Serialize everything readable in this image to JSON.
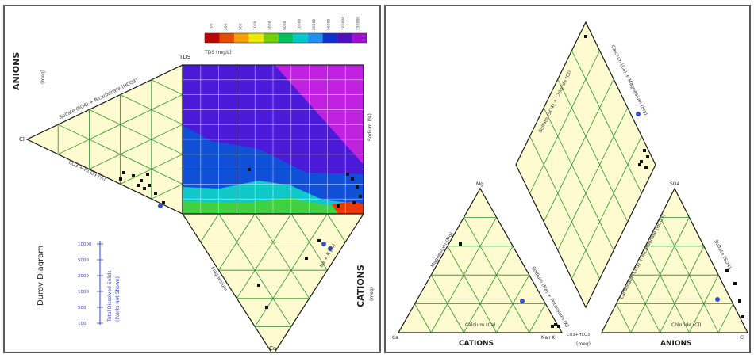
{
  "left_panel": {
    "title": "Durov Diagram",
    "anions_label": "ANIONS",
    "anions_sub": "(meq)",
    "cations_label": "CATIONS",
    "cations_sub": "(meq)",
    "anion_axis_label": "Sulfate (SO4) + Bicarbonate (HCO3)",
    "anion_axis_label_2": "CO3 + HCO3 (%)",
    "right_axis_label": "Sodium (%)",
    "bottom_axis_label_1": "Magnesium",
    "bottom_axis_label_2": "Na + K (%)",
    "colorbar_title": "TDS (mg/L)",
    "colorbar_ticks": [
      "100",
      "200",
      "500",
      "1000",
      "2000",
      "5000",
      "10000",
      "20000",
      "50000",
      "100000",
      "150000"
    ],
    "colorbar_colors": [
      "#c00000",
      "#e84a00",
      "#f5a000",
      "#e8e800",
      "#70d000",
      "#00c060",
      "#00c8c8",
      "#2090f0",
      "#1030d0",
      "#5010c0",
      "#a010d0"
    ],
    "legend_title": "Total Dissolved Solids",
    "legend_sub": "(Points Not Shown)",
    "legend_ticks": [
      "10000",
      "5000",
      "2000",
      "1000",
      "500",
      "100"
    ],
    "corner_labels": {
      "cl": "Cl",
      "top": "TDS",
      "bottom": "Ca"
    }
  },
  "right_panel": {
    "cations_label": "CATIONS",
    "anions_label": "ANIONS",
    "bottom_mid_label": "(meq)",
    "left_axis_label": "Magnesium (Mg)",
    "left_bottom_label": "Calcium (Ca)",
    "right_bottom_label": "Chloride (Cl)",
    "diamond_left_label": "Sulfate (SO4) + Chloride (Cl)",
    "diamond_right_label": "Calcium (Ca) + Magnesium (Mg)",
    "left_tri_right_label": "Sodium (Na) + Potassium (K)",
    "right_tri_left_label": "Carbonate (CO3) + Bicarbonate (HCO3)",
    "right_tri_right_label": "Sulfate (SO4)",
    "apex_labels": {
      "mg": "Mg",
      "so4": "SO4",
      "na": "Na+K",
      "cl": "Cl",
      "ca": "Ca"
    },
    "bottom_small": "CO3+HCO3"
  },
  "colors": {
    "fill": "#fdfbcf",
    "grid": "#2a8f2a",
    "outline": "#1a1a1a",
    "point": "#111111",
    "point_blue": "#3050d0"
  }
}
